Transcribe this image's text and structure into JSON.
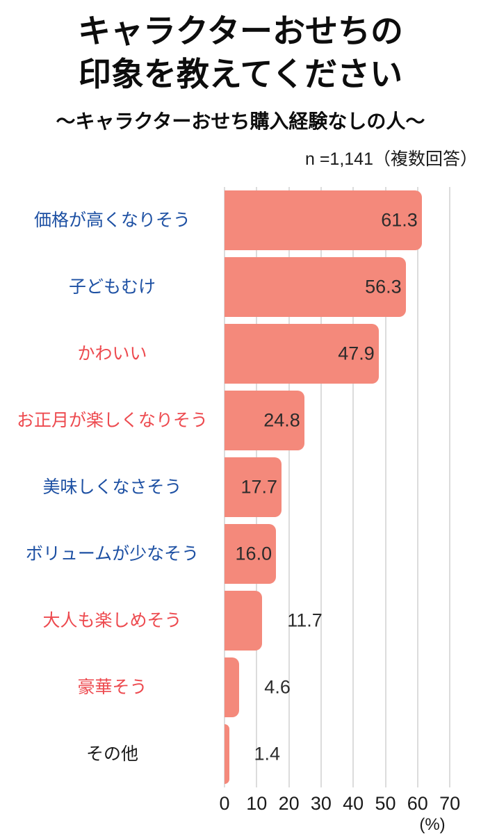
{
  "header": {
    "title_line1": "キャラクターおせちの",
    "title_line2": "印象を教えてください",
    "subtitle": "～キャラクターおせち購入経験なしの人～",
    "sample_note": "n =1,141（複数回答）"
  },
  "colors": {
    "bar": "#F4897B",
    "label_blue": "#1D50A3",
    "label_red": "#ED4A4F",
    "label_black": "#1A1A1A",
    "value_text": "#2B2B2B",
    "gridline": "#DCDCDC"
  },
  "chart_data": {
    "type": "bar",
    "orientation": "horizontal",
    "title": "キャラクターおせちの印象を教えてください",
    "subtitle": "～キャラクターおせち購入経験なしの人～",
    "sample_size_note": "n =1,141（複数回答）",
    "categories": [
      "価格が高くなりそう",
      "子どもむけ",
      "かわいい",
      "お正月が楽しくなりそう",
      "美味しくなさそう",
      "ボリュームが少なそう",
      "大人も楽しめそう",
      "豪華そう",
      "その他"
    ],
    "values": [
      61.3,
      56.3,
      47.9,
      24.8,
      17.7,
      16.0,
      11.7,
      4.6,
      1.4
    ],
    "value_labels": [
      "61.3",
      "56.3",
      "47.9",
      "24.8",
      "17.7",
      "16.0",
      "11.7",
      "4.6",
      "1.4"
    ],
    "label_colors": [
      "blue",
      "blue",
      "red",
      "red",
      "blue",
      "blue",
      "red",
      "red",
      "black"
    ],
    "value_label_positions": [
      "inside",
      "inside",
      "inside",
      "inside",
      "inside",
      "inside",
      "outside",
      "outside",
      "outside"
    ],
    "x_ticks": [
      "0",
      "10",
      "20",
      "30",
      "40",
      "50",
      "60",
      "70"
    ],
    "x_unit": "(%)",
    "xlim": [
      0,
      70
    ],
    "grid": true,
    "legend": false
  }
}
